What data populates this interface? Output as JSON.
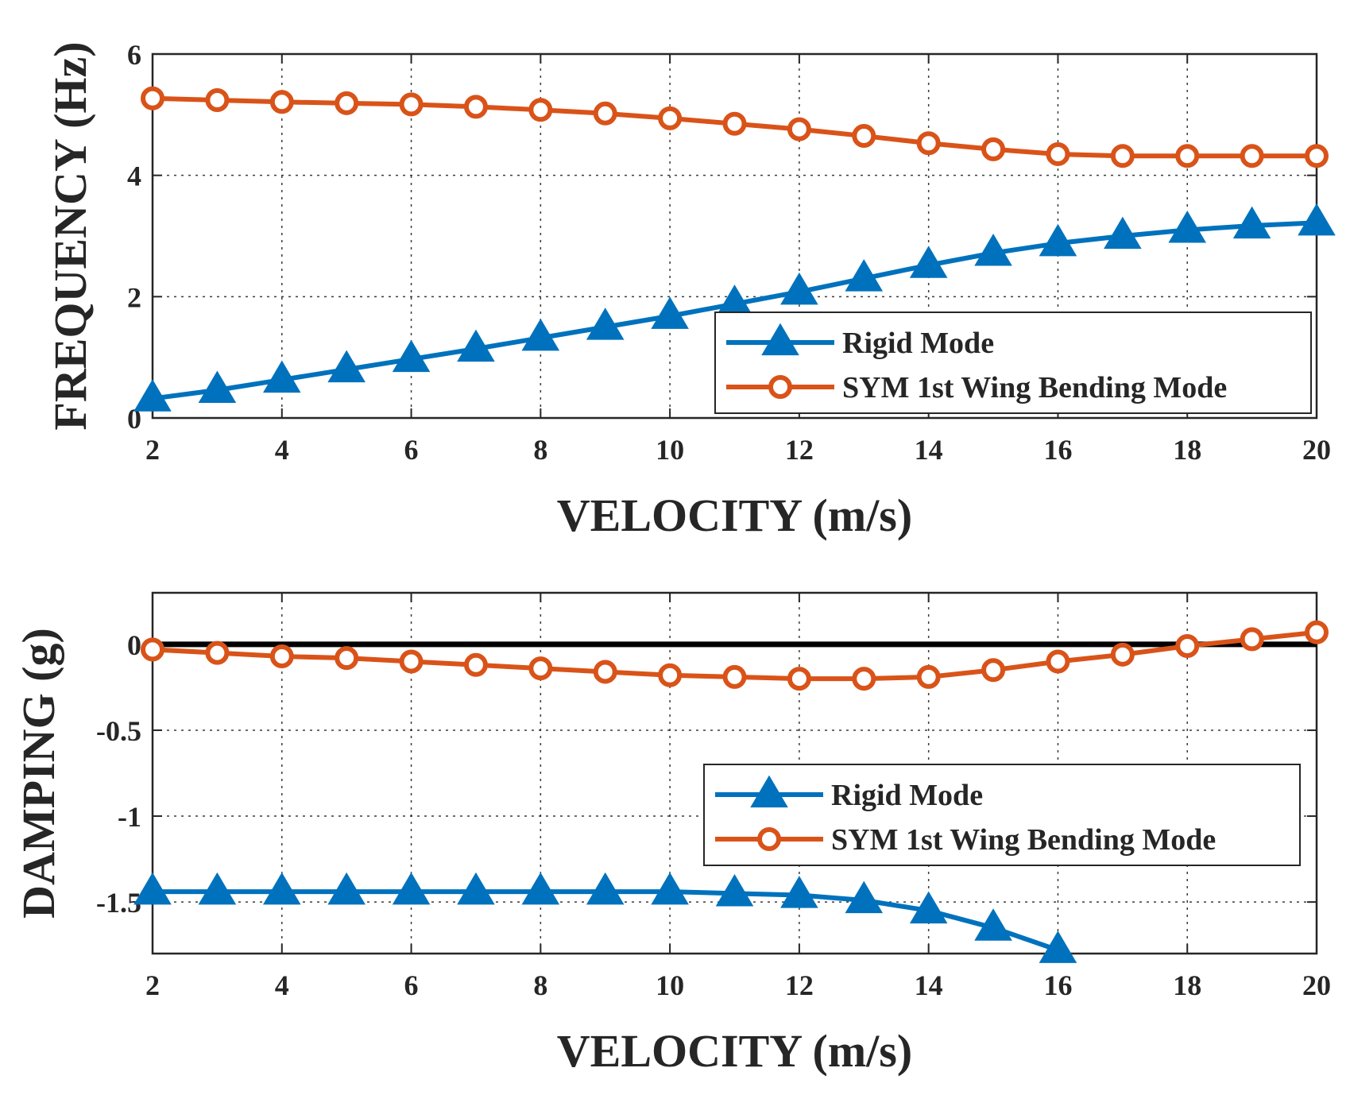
{
  "colors": {
    "rigid": "#0072BD",
    "sym": "#D95319",
    "zero_line": "#000000",
    "axis": "#262626",
    "grid": "#262626"
  },
  "chart_data": [
    {
      "type": "line",
      "x": [
        2,
        3,
        4,
        5,
        6,
        7,
        8,
        9,
        10,
        11,
        12,
        13,
        14,
        15,
        16,
        17,
        18,
        19,
        20
      ],
      "xlabel": "VELOCITY (m/s)",
      "ylabel": "FREQUENCY (Hz)",
      "xlim": [
        2,
        20
      ],
      "ylim": [
        0,
        6
      ],
      "xticks": [
        "2",
        "4",
        "6",
        "8",
        "10",
        "12",
        "14",
        "16",
        "18",
        "20"
      ],
      "yticks": [
        "0",
        "2",
        "4",
        "6"
      ],
      "grid": true,
      "legend_position": "bottom-right",
      "series": [
        {
          "name": "Rigid Mode",
          "marker": "triangle",
          "values": [
            0.32,
            0.46,
            0.63,
            0.8,
            0.97,
            1.14,
            1.32,
            1.5,
            1.68,
            1.88,
            2.08,
            2.3,
            2.52,
            2.72,
            2.88,
            3.0,
            3.1,
            3.17,
            3.22
          ]
        },
        {
          "name": "SYM 1st Wing Bending Mode",
          "marker": "circle",
          "values": [
            5.27,
            5.24,
            5.21,
            5.19,
            5.17,
            5.13,
            5.08,
            5.02,
            4.94,
            4.85,
            4.76,
            4.65,
            4.53,
            4.43,
            4.35,
            4.32,
            4.32,
            4.32,
            4.32
          ]
        }
      ]
    },
    {
      "type": "line",
      "x": [
        2,
        3,
        4,
        5,
        6,
        7,
        8,
        9,
        10,
        11,
        12,
        13,
        14,
        15,
        16,
        17,
        18,
        19,
        20
      ],
      "xlabel": "VELOCITY (m/s)",
      "ylabel": "DAMPING (g)",
      "xlim": [
        2,
        20
      ],
      "ylim": [
        -1.8,
        0.3
      ],
      "xticks": [
        "2",
        "4",
        "6",
        "8",
        "10",
        "12",
        "14",
        "16",
        "18",
        "20"
      ],
      "yticks": [
        "0",
        "-0.5",
        "-1",
        "-1.5"
      ],
      "ytick_values": [
        0,
        -0.5,
        -1,
        -1.5
      ],
      "zero_line": 0,
      "grid": true,
      "legend_position": "center-right",
      "series": [
        {
          "name": "Rigid Mode",
          "marker": "triangle",
          "values": [
            -1.44,
            -1.44,
            -1.44,
            -1.44,
            -1.44,
            -1.44,
            -1.44,
            -1.44,
            -1.44,
            -1.45,
            -1.46,
            -1.49,
            -1.55,
            -1.65,
            -1.78,
            null,
            null,
            null,
            null
          ]
        },
        {
          "name": "SYM 1st Wing Bending Mode",
          "marker": "circle",
          "values": [
            -0.03,
            -0.05,
            -0.07,
            -0.08,
            -0.1,
            -0.12,
            -0.14,
            -0.16,
            -0.18,
            -0.19,
            -0.2,
            -0.2,
            -0.19,
            -0.15,
            -0.1,
            -0.06,
            -0.01,
            0.03,
            0.07
          ]
        }
      ]
    }
  ]
}
